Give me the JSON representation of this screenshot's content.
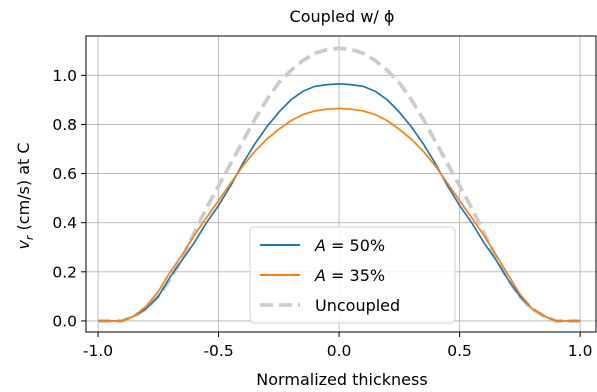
{
  "chart_data": {
    "type": "line",
    "title": "Coupled w/ ϕ",
    "xlabel": "Normalized thickness",
    "ylabel": "v_r (cm/s) at C",
    "ylabel_parts": {
      "var": "v",
      "sub": "r",
      "rest": " (cm/s) at C"
    },
    "xlim": [
      -1.05,
      1.07
    ],
    "ylim": [
      -0.045,
      1.16
    ],
    "xticks": [
      -1.0,
      -0.5,
      0.0,
      0.5,
      1.0
    ],
    "xtick_labels": [
      "-1.0",
      "-0.5",
      "0.0",
      "0.5",
      "1.0"
    ],
    "yticks": [
      0.0,
      0.2,
      0.4,
      0.6,
      0.8,
      1.0
    ],
    "ytick_labels": [
      "0.0",
      "0.2",
      "0.4",
      "0.6",
      "0.8",
      "1.0"
    ],
    "grid": true,
    "legend_position": "lower-center",
    "series": [
      {
        "name": "A = 50%",
        "legend": {
          "lhs": "A",
          "op": " = ",
          "rhs": "50%"
        },
        "color": "#1f77b4",
        "dash": "solid",
        "x": [
          -1.0,
          -0.9,
          -0.85,
          -0.8,
          -0.75,
          -0.7,
          -0.65,
          -0.6,
          -0.55,
          -0.5,
          -0.45,
          -0.4,
          -0.35,
          -0.3,
          -0.25,
          -0.2,
          -0.15,
          -0.1,
          -0.05,
          0.0,
          0.05,
          0.1,
          0.15,
          0.2,
          0.25,
          0.3,
          0.35,
          0.4,
          0.45,
          0.5,
          0.55,
          0.6,
          0.65,
          0.7,
          0.75,
          0.8,
          0.85,
          0.9,
          0.95,
          1.0
        ],
        "y": [
          0.0,
          0.0,
          0.02,
          0.05,
          0.1,
          0.18,
          0.25,
          0.32,
          0.4,
          0.47,
          0.55,
          0.64,
          0.72,
          0.79,
          0.85,
          0.9,
          0.935,
          0.955,
          0.962,
          0.965,
          0.962,
          0.955,
          0.935,
          0.9,
          0.85,
          0.79,
          0.72,
          0.64,
          0.55,
          0.47,
          0.4,
          0.32,
          0.25,
          0.17,
          0.1,
          0.05,
          0.02,
          0.0,
          0.0,
          0.0
        ]
      },
      {
        "name": "A = 35%",
        "legend": {
          "lhs": "A",
          "op": " = ",
          "rhs": "35%"
        },
        "color": "#ff7f0e",
        "dash": "solid",
        "x": [
          -1.0,
          -0.9,
          -0.85,
          -0.8,
          -0.75,
          -0.7,
          -0.65,
          -0.6,
          -0.55,
          -0.5,
          -0.45,
          -0.4,
          -0.35,
          -0.3,
          -0.25,
          -0.2,
          -0.15,
          -0.1,
          -0.05,
          0.0,
          0.05,
          0.1,
          0.15,
          0.2,
          0.25,
          0.3,
          0.35,
          0.4,
          0.45,
          0.5,
          0.55,
          0.6,
          0.65,
          0.7,
          0.75,
          0.8,
          0.85,
          0.9,
          0.95,
          1.0
        ],
        "y": [
          0.0,
          0.0,
          0.02,
          0.06,
          0.12,
          0.2,
          0.27,
          0.35,
          0.42,
          0.49,
          0.56,
          0.63,
          0.69,
          0.74,
          0.78,
          0.815,
          0.84,
          0.855,
          0.862,
          0.865,
          0.862,
          0.855,
          0.84,
          0.815,
          0.78,
          0.74,
          0.69,
          0.63,
          0.56,
          0.49,
          0.42,
          0.35,
          0.27,
          0.19,
          0.11,
          0.05,
          0.02,
          0.0,
          0.0,
          0.0
        ]
      },
      {
        "name": "Uncoupled",
        "color": "#cccccc",
        "dash": "dashed",
        "x": [
          -1.0,
          -0.9,
          -0.85,
          -0.8,
          -0.75,
          -0.7,
          -0.65,
          -0.6,
          -0.55,
          -0.5,
          -0.45,
          -0.4,
          -0.35,
          -0.3,
          -0.25,
          -0.2,
          -0.15,
          -0.1,
          -0.05,
          0.0,
          0.05,
          0.1,
          0.15,
          0.2,
          0.25,
          0.3,
          0.35,
          0.4,
          0.45,
          0.5,
          0.55,
          0.6,
          0.65,
          0.7,
          0.75,
          0.8,
          0.85,
          0.9,
          0.95,
          1.0
        ],
        "y": [
          0.0,
          0.0,
          0.02,
          0.05,
          0.1,
          0.17,
          0.26,
          0.36,
          0.46,
          0.55,
          0.64,
          0.73,
          0.82,
          0.9,
          0.97,
          1.02,
          1.06,
          1.09,
          1.105,
          1.11,
          1.105,
          1.09,
          1.06,
          1.02,
          0.97,
          0.9,
          0.82,
          0.73,
          0.64,
          0.55,
          0.46,
          0.36,
          0.26,
          0.17,
          0.1,
          0.05,
          0.02,
          0.0,
          0.0,
          0.0
        ]
      }
    ]
  }
}
